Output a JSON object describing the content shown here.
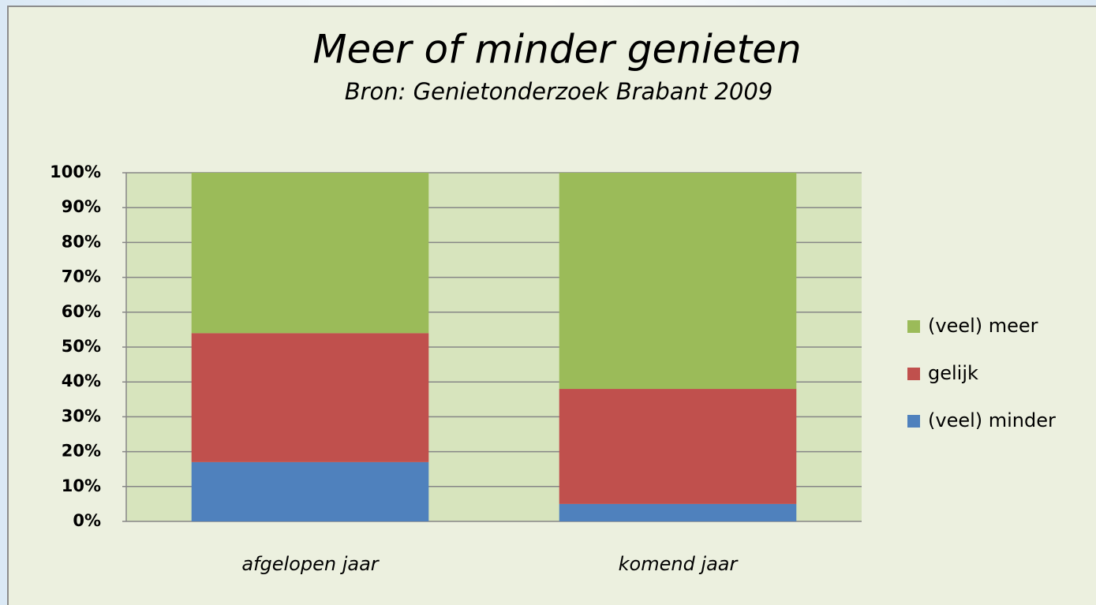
{
  "chart_data": {
    "type": "bar",
    "stacked": true,
    "title": "Meer of minder genieten",
    "subtitle": "Bron: Genietonderzoek Brabant 2009",
    "categories": [
      "afgelopen jaar",
      "komend jaar"
    ],
    "series": [
      {
        "name": "(veel) minder",
        "color": "#4f81bd",
        "values": [
          17,
          5
        ]
      },
      {
        "name": "gelijk",
        "color": "#c0504d",
        "values": [
          37,
          33
        ]
      },
      {
        "name": "(veel) meer",
        "color": "#9bbb59",
        "values": [
          46,
          62
        ]
      }
    ],
    "ylim": [
      0,
      100
    ],
    "yticks": [
      {
        "value": 0,
        "label": "0%"
      },
      {
        "value": 10,
        "label": "10%"
      },
      {
        "value": 20,
        "label": "20%"
      },
      {
        "value": 30,
        "label": "30%"
      },
      {
        "value": 40,
        "label": "40%"
      },
      {
        "value": 50,
        "label": "50%"
      },
      {
        "value": 60,
        "label": "60%"
      },
      {
        "value": 70,
        "label": "70%"
      },
      {
        "value": 80,
        "label": "80%"
      },
      {
        "value": 90,
        "label": "90%"
      },
      {
        "value": 100,
        "label": "100%"
      }
    ],
    "grid": true,
    "legend": "right"
  }
}
